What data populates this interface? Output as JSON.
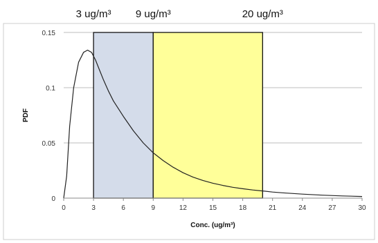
{
  "chart_data": {
    "type": "line",
    "title": "",
    "xlabel": "Conc. (ug/m³)",
    "ylabel": "PDF",
    "xlim": [
      0,
      30
    ],
    "ylim": [
      0,
      0.15
    ],
    "x_ticks": [
      0,
      3,
      6,
      9,
      12,
      15,
      18,
      21,
      24,
      27,
      30
    ],
    "y_ticks": [
      0,
      0.05,
      0.1,
      0.15
    ],
    "x_tick_labels": [
      "0",
      "3",
      "6",
      "9",
      "12",
      "15",
      "18",
      "21",
      "24",
      "27",
      "30"
    ],
    "y_tick_labels": [
      "0",
      "0.05",
      "0.1",
      "0.15"
    ],
    "grid": "horizontal",
    "legend": "none",
    "series": [
      {
        "x": [
          0,
          0.3,
          0.6,
          1.0,
          1.5,
          2.0,
          2.4,
          2.8,
          3.2,
          3.6,
          4.0,
          4.5,
          5.0,
          6.0,
          7.0,
          8.0,
          9.0,
          10.0,
          11.0,
          12.0,
          13.0,
          14.0,
          15.0,
          16.0,
          17.0,
          18.0,
          19.0,
          20.0,
          21.0,
          22.0,
          24.0,
          26.0,
          28.0,
          30.0
        ],
        "y": [
          0,
          0.02,
          0.065,
          0.1,
          0.123,
          0.132,
          0.134,
          0.132,
          0.125,
          0.116,
          0.107,
          0.097,
          0.088,
          0.074,
          0.061,
          0.05,
          0.041,
          0.034,
          0.028,
          0.023,
          0.019,
          0.016,
          0.0135,
          0.0115,
          0.0098,
          0.0085,
          0.0074,
          0.0065,
          0.0055,
          0.0048,
          0.0036,
          0.0027,
          0.002,
          0.0015
        ],
        "color": "#222222"
      }
    ],
    "bands": [
      {
        "x0": 3,
        "x1": 9,
        "color": "#d4dcea"
      },
      {
        "x0": 9,
        "x1": 20,
        "color": "#ffff99"
      }
    ],
    "annotations": [
      {
        "text": "3 ug/m³",
        "x": 3
      },
      {
        "text": "9 ug/m³",
        "x": 9
      },
      {
        "text": "20 ug/m³",
        "x": 20
      }
    ]
  }
}
